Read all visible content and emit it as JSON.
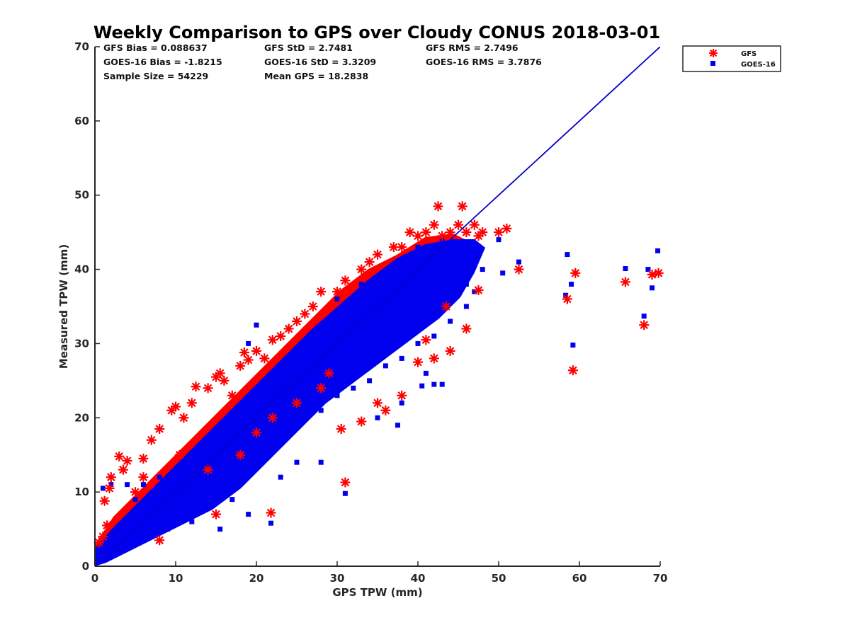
{
  "chart_data": {
    "type": "scatter",
    "title": "Weekly Comparison to GPS over Cloudy CONUS 2018-03-01",
    "xlabel": "GPS TPW (mm)",
    "ylabel": "Measured TPW (mm)",
    "xlim": [
      0,
      70
    ],
    "ylim": [
      0,
      70
    ],
    "xticks": [
      "0",
      "10",
      "20",
      "30",
      "40",
      "50",
      "60",
      "70"
    ],
    "yticks": [
      "0",
      "10",
      "20",
      "30",
      "40",
      "50",
      "60",
      "70"
    ],
    "grid": false,
    "legend_position": "top-right outside",
    "stats": [
      "GFS Bias = 0.088637",
      "GFS StD = 2.7481",
      "GFS RMS = 2.7496",
      "GOES-16 Bias = -1.8215",
      "GOES-16 StD = 3.3209",
      "GOES-16 RMS = 3.7876",
      "Sample Size = 54229",
      "Mean GPS = 18.2838"
    ],
    "reference_line": {
      "x": [
        0,
        70
      ],
      "y": [
        0,
        70
      ],
      "color": "#0000cc"
    },
    "series": [
      {
        "name": "GFS",
        "marker": "asterisk",
        "color": "#ff0000",
        "points": [
          [
            0.5,
            3.2
          ],
          [
            1,
            4
          ],
          [
            1.5,
            5.5
          ],
          [
            1.8,
            10.5
          ],
          [
            2,
            12
          ],
          [
            1.2,
            8.8
          ],
          [
            3,
            14.8
          ],
          [
            4,
            14.2
          ],
          [
            3.5,
            13
          ],
          [
            6,
            14.5
          ],
          [
            7,
            17
          ],
          [
            8,
            18.5
          ],
          [
            9.5,
            21
          ],
          [
            10,
            21.5
          ],
          [
            11,
            20
          ],
          [
            12,
            22
          ],
          [
            12.5,
            24.2
          ],
          [
            14,
            24
          ],
          [
            15,
            25.5
          ],
          [
            15.5,
            26
          ],
          [
            16,
            25
          ],
          [
            17,
            23
          ],
          [
            18,
            27
          ],
          [
            18.5,
            28.8
          ],
          [
            19,
            27.8
          ],
          [
            20,
            29
          ],
          [
            21,
            28
          ],
          [
            22,
            30.5
          ],
          [
            23,
            31
          ],
          [
            24,
            32
          ],
          [
            25,
            33
          ],
          [
            26,
            34
          ],
          [
            27,
            35
          ],
          [
            28,
            37
          ],
          [
            30,
            37
          ],
          [
            31,
            38.5
          ],
          [
            33,
            40
          ],
          [
            34,
            41
          ],
          [
            35,
            42
          ],
          [
            37,
            43
          ],
          [
            38,
            43
          ],
          [
            39,
            45
          ],
          [
            40,
            44.5
          ],
          [
            41,
            45
          ],
          [
            42,
            46
          ],
          [
            42.5,
            48.5
          ],
          [
            43,
            44.5
          ],
          [
            44,
            45
          ],
          [
            45,
            46
          ],
          [
            45.5,
            48.5
          ],
          [
            46,
            45
          ],
          [
            47,
            46
          ],
          [
            47.5,
            44.5
          ],
          [
            48,
            45
          ],
          [
            50,
            45
          ],
          [
            51,
            45.5
          ],
          [
            52.5,
            40
          ],
          [
            58.5,
            36
          ],
          [
            59.5,
            39.5
          ],
          [
            59.2,
            26.4
          ],
          [
            65.7,
            38.3
          ],
          [
            68,
            32.5
          ],
          [
            69,
            39.3
          ],
          [
            69.8,
            39.5
          ],
          [
            31,
            11.3
          ],
          [
            21.8,
            7.2
          ],
          [
            33,
            19.5
          ],
          [
            36,
            21
          ],
          [
            38,
            23
          ],
          [
            40,
            27.5
          ],
          [
            42,
            28
          ],
          [
            44,
            29
          ],
          [
            46,
            32
          ],
          [
            47.5,
            37.2
          ],
          [
            43.5,
            35
          ],
          [
            41,
            30.5
          ],
          [
            30.5,
            18.5
          ],
          [
            35,
            22
          ],
          [
            15,
            7
          ],
          [
            8,
            3.5
          ],
          [
            5,
            10
          ],
          [
            6,
            12
          ],
          [
            10.5,
            15
          ],
          [
            14,
            13
          ],
          [
            18,
            15
          ],
          [
            20,
            18
          ],
          [
            22,
            20
          ],
          [
            25,
            22
          ],
          [
            28,
            24
          ],
          [
            29,
            26
          ]
        ]
      },
      {
        "name": "GOES-16",
        "marker": "square",
        "color": "#0000ee",
        "points": [
          [
            1,
            10.5
          ],
          [
            2,
            11
          ],
          [
            4,
            11
          ],
          [
            6,
            11
          ],
          [
            8,
            12
          ],
          [
            5,
            9
          ],
          [
            7,
            9
          ],
          [
            10,
            11
          ],
          [
            12,
            13
          ],
          [
            14,
            15
          ],
          [
            16,
            15
          ],
          [
            18,
            17
          ],
          [
            20,
            17
          ],
          [
            22,
            18
          ],
          [
            24,
            20
          ],
          [
            26,
            21
          ],
          [
            28,
            21
          ],
          [
            30,
            23
          ],
          [
            32,
            24
          ],
          [
            34,
            25
          ],
          [
            36,
            27
          ],
          [
            38,
            28
          ],
          [
            40,
            30
          ],
          [
            42,
            31
          ],
          [
            44,
            33
          ],
          [
            46,
            35
          ],
          [
            47,
            37
          ],
          [
            48,
            40
          ],
          [
            37.5,
            19
          ],
          [
            35,
            20
          ],
          [
            42,
            24.5
          ],
          [
            43,
            24.5
          ],
          [
            40.5,
            24.3
          ],
          [
            28,
            14
          ],
          [
            31,
            9.8
          ],
          [
            21.8,
            5.8
          ],
          [
            15.5,
            5
          ],
          [
            19,
            7
          ],
          [
            12,
            6
          ],
          [
            9,
            5
          ],
          [
            3,
            2
          ],
          [
            5,
            3
          ],
          [
            2,
            1.5
          ],
          [
            19,
            30
          ],
          [
            20,
            32.5
          ],
          [
            30,
            36
          ],
          [
            33,
            38
          ],
          [
            37,
            40
          ],
          [
            40,
            43
          ],
          [
            43,
            44
          ],
          [
            50,
            44
          ],
          [
            50.5,
            39.5
          ],
          [
            52.5,
            41
          ],
          [
            58.5,
            42
          ],
          [
            59,
            38
          ],
          [
            59.2,
            29.8
          ],
          [
            58.3,
            36.5
          ],
          [
            65.7,
            40.1
          ],
          [
            68,
            33.7
          ],
          [
            69,
            37.5
          ],
          [
            69.7,
            42.5
          ],
          [
            68.5,
            40
          ],
          [
            45,
            39
          ],
          [
            46,
            38
          ],
          [
            44.5,
            42
          ],
          [
            41,
            26
          ],
          [
            38,
            22
          ],
          [
            25,
            14
          ],
          [
            23,
            12
          ],
          [
            17,
            9
          ]
        ]
      }
    ]
  }
}
